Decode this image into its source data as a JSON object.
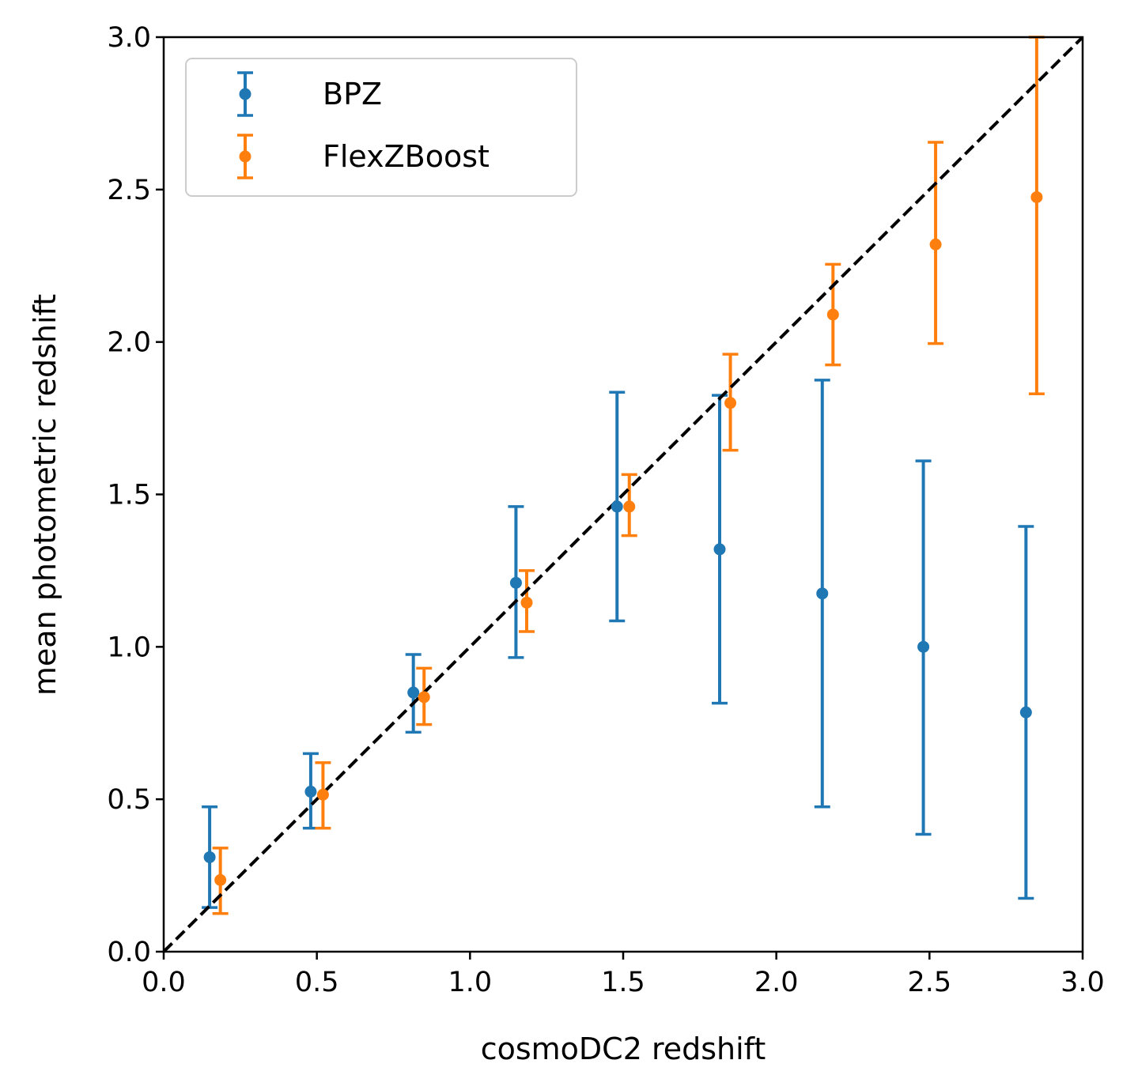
{
  "chart_data": {
    "type": "scatter",
    "title": "",
    "xlabel": "cosmoDC2 redshift",
    "ylabel": "mean photometric redshift",
    "xlim": [
      0.0,
      3.0
    ],
    "ylim": [
      0.0,
      3.0
    ],
    "xticks": [
      "0.0",
      "0.5",
      "1.0",
      "1.5",
      "2.0",
      "2.5",
      "3.0"
    ],
    "yticks": [
      "0.0",
      "0.5",
      "1.0",
      "1.5",
      "2.0",
      "2.5",
      "3.0"
    ],
    "grid": false,
    "legend_position": "top-left",
    "reference_line": {
      "style": "dashed",
      "color": "#000000",
      "from": [
        0,
        0
      ],
      "to": [
        3,
        3
      ]
    },
    "series": [
      {
        "name": "BPZ",
        "color": "#1f77b4",
        "x": [
          0.15,
          0.48,
          0.815,
          1.15,
          1.48,
          1.815,
          2.15,
          2.48,
          2.815
        ],
        "y": [
          0.31,
          0.525,
          0.85,
          1.21,
          1.46,
          1.32,
          1.175,
          1.0,
          0.785
        ],
        "y_low": [
          0.145,
          0.405,
          0.72,
          0.965,
          1.085,
          0.815,
          0.475,
          0.385,
          0.175
        ],
        "y_high": [
          0.475,
          0.65,
          0.975,
          1.46,
          1.835,
          1.825,
          1.875,
          1.61,
          1.395
        ]
      },
      {
        "name": "FlexZBoost",
        "color": "#ff7f0e",
        "x": [
          0.185,
          0.52,
          0.85,
          1.185,
          1.52,
          1.85,
          2.185,
          2.52,
          2.85
        ],
        "y": [
          0.235,
          0.515,
          0.835,
          1.145,
          1.46,
          1.8,
          2.09,
          2.32,
          2.475
        ],
        "y_low": [
          0.125,
          0.405,
          0.745,
          1.05,
          1.365,
          1.645,
          1.925,
          1.995,
          1.83
        ],
        "y_high": [
          0.34,
          0.62,
          0.93,
          1.25,
          1.565,
          1.96,
          2.255,
          2.655,
          3.0
        ]
      }
    ]
  }
}
